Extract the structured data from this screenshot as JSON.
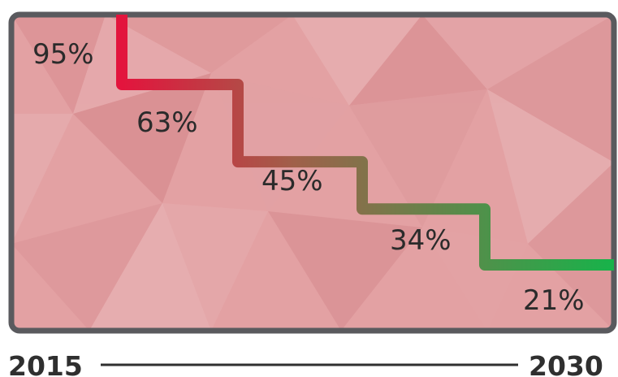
{
  "chart_data": {
    "type": "line",
    "x_start_label": "2015",
    "x_end_label": "2030",
    "values": [
      95,
      63,
      45,
      34,
      21
    ],
    "point_labels": [
      "95%",
      "63%",
      "45%",
      "34%",
      "21%"
    ],
    "colors": {
      "panel_fill": "#e3a1a3",
      "panel_border": "#5a5a5e",
      "line_start": "#e3143d",
      "line_mid": "#a0604a",
      "line_end": "#17b34a",
      "text": "#2b2b2b"
    }
  }
}
